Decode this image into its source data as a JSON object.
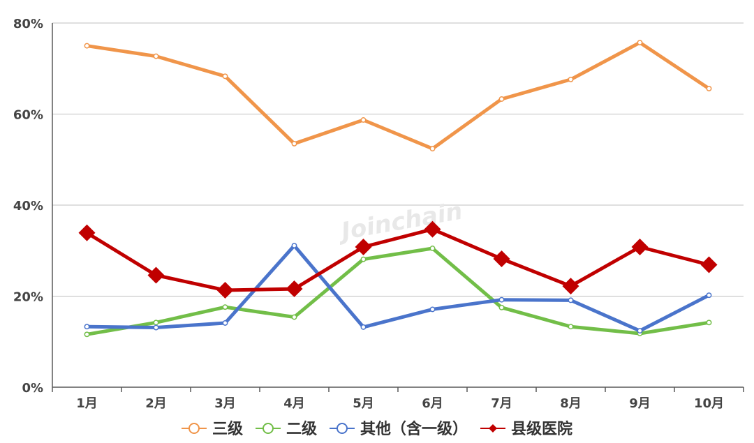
{
  "chart_data": {
    "type": "line",
    "categories": [
      "1月",
      "2月",
      "3月",
      "4月",
      "5月",
      "6月",
      "7月",
      "8月",
      "9月",
      "10月"
    ],
    "ylim": [
      0,
      80
    ],
    "y_ticks": [
      "0%",
      "20%",
      "40%",
      "60%",
      "80%"
    ],
    "grid": "horizontal",
    "legend_position": "bottom",
    "series": [
      {
        "name": "三级",
        "color": "#F0954A",
        "marker": "circle",
        "values": [
          75.0,
          72.7,
          68.3,
          53.5,
          58.7,
          52.4,
          63.3,
          67.6,
          75.7,
          65.6
        ]
      },
      {
        "name": "二级",
        "color": "#72BE48",
        "marker": "circle",
        "values": [
          11.6,
          14.2,
          17.6,
          15.4,
          28.1,
          30.5,
          17.5,
          13.3,
          11.8,
          14.2
        ]
      },
      {
        "name": "其他（含一级）",
        "color": "#4A74CB",
        "marker": "circle",
        "values": [
          13.3,
          13.1,
          14.1,
          31.1,
          13.2,
          17.1,
          19.2,
          19.1,
          12.4,
          20.2
        ]
      },
      {
        "name": "县级医院",
        "color": "#C00000",
        "marker": "diamond",
        "values": [
          33.9,
          24.6,
          21.3,
          21.6,
          30.8,
          34.7,
          28.2,
          22.2,
          30.8,
          26.9
        ]
      }
    ]
  },
  "watermark": "Joinchain"
}
